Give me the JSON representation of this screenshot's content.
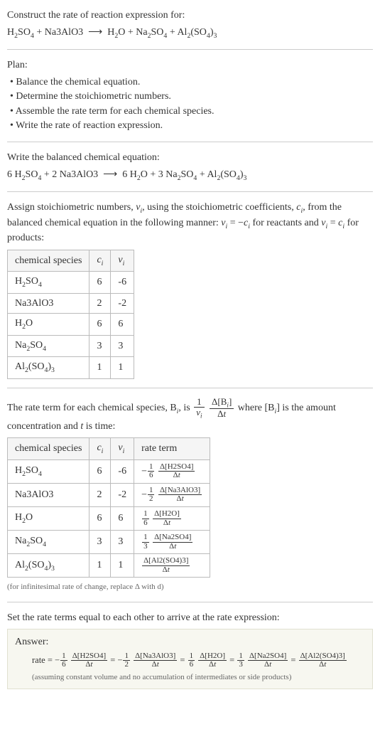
{
  "header": {
    "prompt": "Construct the rate of reaction expression for:",
    "equation_html": "H<sub>2</sub>SO<sub>4</sub> + Na3AlO3 &nbsp;⟶&nbsp; H<sub>2</sub>O + Na<sub>2</sub>SO<sub>4</sub> + Al<sub>2</sub>(SO<sub>4</sub>)<sub>3</sub>"
  },
  "plan": {
    "title": "Plan:",
    "items": [
      "Balance the chemical equation.",
      "Determine the stoichiometric numbers.",
      "Assemble the rate term for each chemical species.",
      "Write the rate of reaction expression."
    ]
  },
  "balanced": {
    "title": "Write the balanced chemical equation:",
    "equation_html": "6 H<sub>2</sub>SO<sub>4</sub> + 2 Na3AlO3 &nbsp;⟶&nbsp; 6 H<sub>2</sub>O + 3 Na<sub>2</sub>SO<sub>4</sub> + Al<sub>2</sub>(SO<sub>4</sub>)<sub>3</sub>"
  },
  "stoich": {
    "intro_html": "Assign stoichiometric numbers, <i>ν<sub>i</sub></i>, using the stoichiometric coefficients, <i>c<sub>i</sub></i>, from the balanced chemical equation in the following manner: <i>ν<sub>i</sub></i> = −<i>c<sub>i</sub></i> for reactants and <i>ν<sub>i</sub></i> = <i>c<sub>i</sub></i> for products:",
    "columns": [
      "chemical species",
      "c_i",
      "ν_i"
    ],
    "col_html": [
      "chemical species",
      "<i>c<sub>i</sub></i>",
      "<i>ν<sub>i</sub></i>"
    ],
    "rows": [
      {
        "species_html": "H<sub>2</sub>SO<sub>4</sub>",
        "c": "6",
        "nu": "-6"
      },
      {
        "species_html": "Na3AlO3",
        "c": "2",
        "nu": "-2"
      },
      {
        "species_html": "H<sub>2</sub>O",
        "c": "6",
        "nu": "6"
      },
      {
        "species_html": "Na<sub>2</sub>SO<sub>4</sub>",
        "c": "3",
        "nu": "3"
      },
      {
        "species_html": "Al<sub>2</sub>(SO<sub>4</sub>)<sub>3</sub>",
        "c": "1",
        "nu": "1"
      }
    ]
  },
  "rate_terms": {
    "intro_html": "The rate term for each chemical species, B<sub><i>i</i></sub>, is <span class='frac-big'><span class='num'>1</span><span class='den'><i>ν<sub>i</sub></i></span></span> <span class='frac-big'><span class='num'>Δ[B<sub><i>i</i></sub>]</span><span class='den'>Δ<i>t</i></span></span> where [B<sub><i>i</i></sub>] is the amount concentration and <i>t</i> is time:",
    "columns": [
      "chemical species",
      "c_i",
      "ν_i",
      "rate term"
    ],
    "col_html": [
      "chemical species",
      "<i>c<sub>i</sub></i>",
      "<i>ν<sub>i</sub></i>",
      "rate term"
    ],
    "rows": [
      {
        "species_html": "H<sub>2</sub>SO<sub>4</sub>",
        "c": "6",
        "nu": "-6",
        "rate_html": "−<span class='frac'><span class='num'>1</span><span class='den'>6</span></span> <span class='frac'><span class='num'>Δ[H2SO4]</span><span class='den'>Δ<i>t</i></span></span>"
      },
      {
        "species_html": "Na3AlO3",
        "c": "2",
        "nu": "-2",
        "rate_html": "−<span class='frac'><span class='num'>1</span><span class='den'>2</span></span> <span class='frac'><span class='num'>Δ[Na3AlO3]</span><span class='den'>Δ<i>t</i></span></span>"
      },
      {
        "species_html": "H<sub>2</sub>O",
        "c": "6",
        "nu": "6",
        "rate_html": "<span class='frac'><span class='num'>1</span><span class='den'>6</span></span> <span class='frac'><span class='num'>Δ[H2O]</span><span class='den'>Δ<i>t</i></span></span>"
      },
      {
        "species_html": "Na<sub>2</sub>SO<sub>4</sub>",
        "c": "3",
        "nu": "3",
        "rate_html": "<span class='frac'><span class='num'>1</span><span class='den'>3</span></span> <span class='frac'><span class='num'>Δ[Na2SO4]</span><span class='den'>Δ<i>t</i></span></span>"
      },
      {
        "species_html": "Al<sub>2</sub>(SO<sub>4</sub>)<sub>3</sub>",
        "c": "1",
        "nu": "1",
        "rate_html": "<span class='frac'><span class='num'>Δ[Al2(SO4)3]</span><span class='den'>Δ<i>t</i></span></span>"
      }
    ],
    "footnote": "(for infinitesimal rate of change, replace Δ with d)"
  },
  "final": {
    "intro": "Set the rate terms equal to each other to arrive at the rate expression:",
    "answer_label": "Answer:",
    "rate_html": "rate = −<span class='frac'><span class='num'>1</span><span class='den'>6</span></span> <span class='frac'><span class='num'>Δ[H2SO4]</span><span class='den'>Δ<i>t</i></span></span> = −<span class='frac'><span class='num'>1</span><span class='den'>2</span></span> <span class='frac'><span class='num'>Δ[Na3AlO3]</span><span class='den'>Δ<i>t</i></span></span> = <span class='frac'><span class='num'>1</span><span class='den'>6</span></span> <span class='frac'><span class='num'>Δ[H2O]</span><span class='den'>Δ<i>t</i></span></span> = <span class='frac'><span class='num'>1</span><span class='den'>3</span></span> <span class='frac'><span class='num'>Δ[Na2SO4]</span><span class='den'>Δ<i>t</i></span></span> = <span class='frac'><span class='num'>Δ[Al2(SO4)3]</span><span class='den'>Δ<i>t</i></span></span>",
    "assumption": "(assuming constant volume and no accumulation of intermediates or side products)"
  }
}
